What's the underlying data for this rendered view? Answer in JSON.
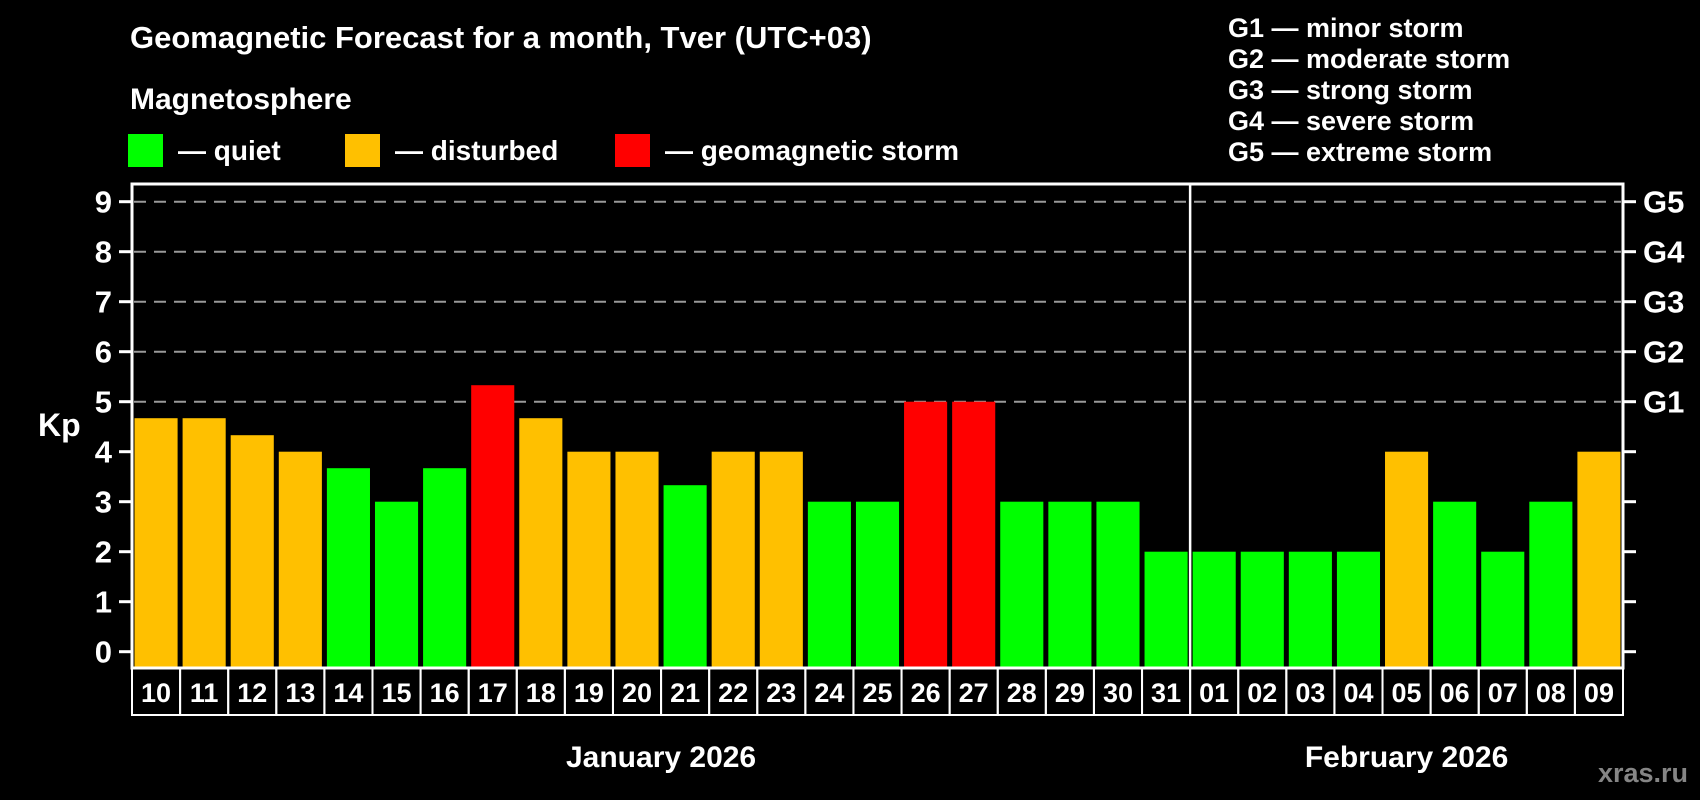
{
  "page": {
    "background": "#000000"
  },
  "header": {
    "title": "Geomagnetic Forecast for a month, Tver (UTC+03)",
    "subtitle": "Magnetosphere"
  },
  "legend": {
    "items": [
      {
        "key": "quiet",
        "label": "— quiet",
        "color": "#00ff00"
      },
      {
        "key": "disturbed",
        "label": "— disturbed",
        "color": "#ffc000"
      },
      {
        "key": "storm",
        "label": "— geomagnetic storm",
        "color": "#ff0000"
      }
    ]
  },
  "storm_scale_legend": {
    "lines": [
      "G1 — minor storm",
      "G2 — moderate storm",
      "G3 — strong storm",
      "G4 — severe storm",
      "G5 — extreme storm"
    ]
  },
  "watermark": "xras.ru",
  "chart_data": {
    "type": "bar",
    "title": "Geomagnetic Forecast for a month, Tver (UTC+03)",
    "ylabel": "Kp",
    "ylim": [
      0,
      9
    ],
    "yticks": [
      0,
      1,
      2,
      3,
      4,
      5,
      6,
      7,
      8,
      9
    ],
    "gridlines_at": [
      5,
      6,
      7,
      8,
      9
    ],
    "grid_style": "dashed gray horizontal lines only at Kp 5..9",
    "right_axis_labels": [
      {
        "kp": 5,
        "label": "G1"
      },
      {
        "kp": 6,
        "label": "G2"
      },
      {
        "kp": 7,
        "label": "G3"
      },
      {
        "kp": 8,
        "label": "G4"
      },
      {
        "kp": 9,
        "label": "G5"
      }
    ],
    "months": [
      {
        "label": "January 2026",
        "start_index": 0,
        "days": 22
      },
      {
        "label": "February 2026",
        "start_index": 22,
        "days": 9
      }
    ],
    "categories": [
      "10",
      "11",
      "12",
      "13",
      "14",
      "15",
      "16",
      "17",
      "18",
      "19",
      "20",
      "21",
      "22",
      "23",
      "24",
      "25",
      "26",
      "27",
      "28",
      "29",
      "30",
      "31",
      "01",
      "02",
      "03",
      "04",
      "05",
      "06",
      "07",
      "08",
      "09"
    ],
    "values": [
      4.67,
      4.67,
      4.33,
      4,
      3.67,
      3,
      3.67,
      5.33,
      4.67,
      4,
      4,
      3.33,
      4,
      4,
      3,
      3,
      5,
      5,
      3,
      3,
      3,
      2,
      2,
      2,
      2,
      2,
      4,
      3,
      2,
      3,
      4
    ],
    "states": [
      "disturbed",
      "disturbed",
      "disturbed",
      "disturbed",
      "quiet",
      "quiet",
      "quiet",
      "storm",
      "disturbed",
      "disturbed",
      "disturbed",
      "quiet",
      "disturbed",
      "disturbed",
      "quiet",
      "quiet",
      "storm",
      "storm",
      "quiet",
      "quiet",
      "quiet",
      "quiet",
      "quiet",
      "quiet",
      "quiet",
      "quiet",
      "disturbed",
      "quiet",
      "quiet",
      "quiet",
      "disturbed"
    ],
    "state_colors": {
      "quiet": "#00ff00",
      "disturbed": "#ffc000",
      "storm": "#ff0000"
    },
    "axis_color": "#ffffff",
    "gridline_color": "#9a9a9a",
    "month_separator_color": "#ffffff"
  }
}
